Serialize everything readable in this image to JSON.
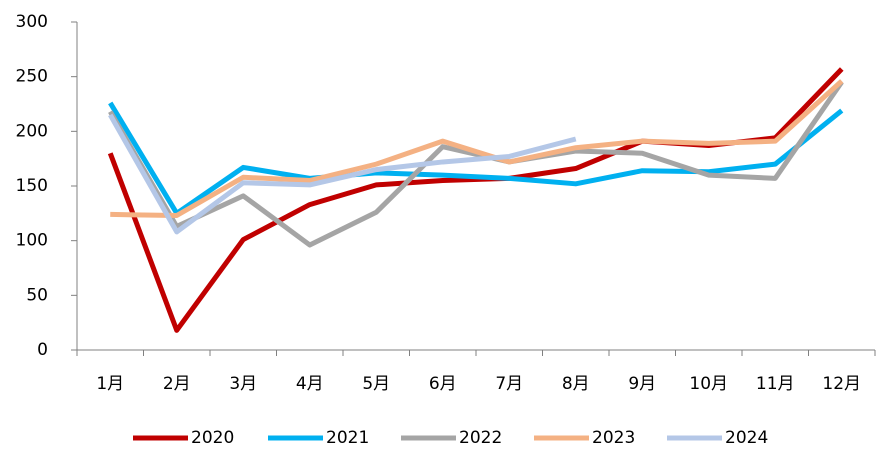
{
  "chart_data": {
    "type": "line",
    "categories": [
      "1月",
      "2月",
      "3月",
      "4月",
      "5月",
      "6月",
      "7月",
      "8月",
      "9月",
      "10月",
      "11月",
      "12月"
    ],
    "series": [
      {
        "name": "2020",
        "color": "#c00000",
        "values": [
          180,
          18,
          101,
          133,
          151,
          155,
          157,
          166,
          191,
          187,
          194,
          257
        ]
      },
      {
        "name": "2021",
        "color": "#00b0f0",
        "values": [
          226,
          125,
          167,
          157,
          162,
          160,
          157,
          152,
          164,
          163,
          170,
          219
        ]
      },
      {
        "name": "2022",
        "color": "#a5a5a5",
        "values": [
          218,
          113,
          141,
          96,
          126,
          186,
          172,
          182,
          180,
          160,
          157,
          245
        ]
      },
      {
        "name": "2023",
        "color": "#f4b183",
        "values": [
          124,
          123,
          158,
          155,
          170,
          191,
          172,
          185,
          191,
          189,
          191,
          246
        ]
      },
      {
        "name": "2024",
        "color": "#b4c7e7",
        "values": [
          215,
          108,
          153,
          151,
          165,
          172,
          177,
          193,
          null,
          null,
          null,
          null
        ]
      }
    ],
    "ylim": [
      0,
      300
    ],
    "yticks": [
      0,
      50,
      100,
      150,
      200,
      250,
      300
    ]
  }
}
